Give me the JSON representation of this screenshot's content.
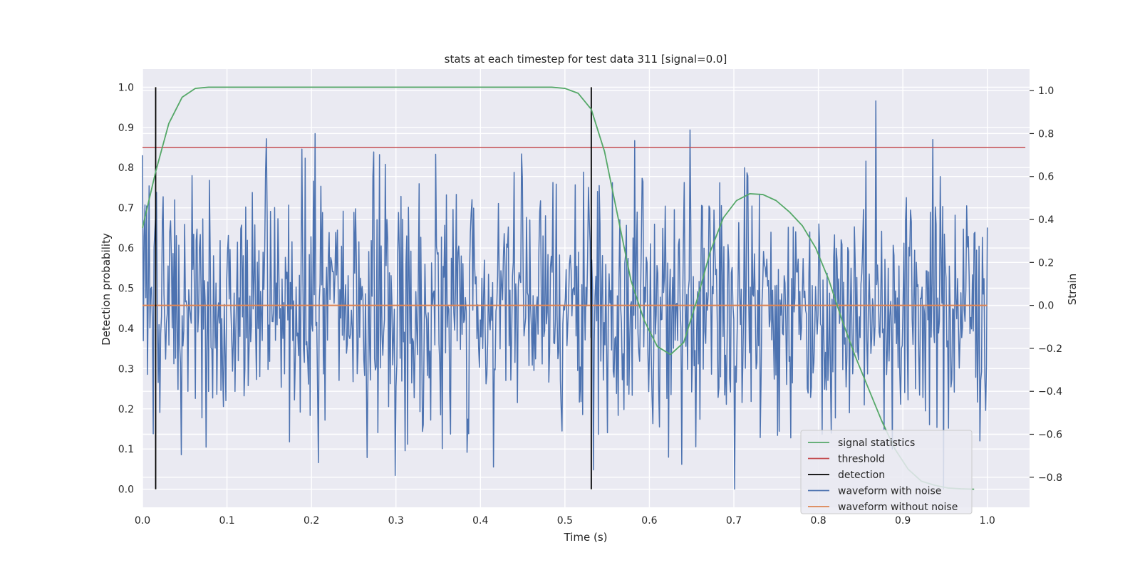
{
  "chart_data": {
    "type": "line",
    "title": "stats at each timestep for test data 311 [signal=0.0]",
    "xlabel": "Time (s)",
    "ylabel_left": "Detection probability",
    "ylabel_right": "Strain",
    "xlim": [
      0.0,
      1.05
    ],
    "ylim_left": [
      -0.045,
      1.045
    ],
    "ylim_right": [
      -0.94,
      1.1
    ],
    "x_ticks": [
      "0.0",
      "0.1",
      "0.2",
      "0.3",
      "0.4",
      "0.5",
      "0.6",
      "0.7",
      "0.8",
      "0.9",
      "1.0"
    ],
    "y_ticks_left": [
      "0.0",
      "0.1",
      "0.2",
      "0.3",
      "0.4",
      "0.5",
      "0.6",
      "0.7",
      "0.8",
      "0.9",
      "1.0"
    ],
    "y_ticks_right": [
      "−0.8",
      "−0.6",
      "−0.4",
      "−0.2",
      "0.0",
      "0.2",
      "0.4",
      "0.6",
      "0.8",
      "1.0"
    ],
    "grid": true,
    "legend_position": "lower-right",
    "series": [
      {
        "name": "signal statistics",
        "axis": "left",
        "color": "#55a868",
        "x": [
          0.0,
          0.0156,
          0.0312,
          0.0469,
          0.0625,
          0.0781,
          0.1,
          0.2,
          0.3,
          0.4,
          0.4844,
          0.5,
          0.5156,
          0.5312,
          0.5469,
          0.5625,
          0.5781,
          0.5938,
          0.6094,
          0.625,
          0.6406,
          0.6562,
          0.6719,
          0.6875,
          0.7031,
          0.7188,
          0.7344,
          0.75,
          0.7656,
          0.7812,
          0.7969,
          0.8125,
          0.8281,
          0.8438,
          0.8594,
          0.875,
          0.8906,
          0.9062,
          0.9219,
          0.9375,
          0.9531,
          0.9688,
          0.9844
        ],
        "y": [
          0.65,
          0.79,
          0.91,
          0.975,
          0.997,
          1.0,
          1.0,
          1.0,
          1.0,
          1.0,
          1.0,
          0.997,
          0.985,
          0.945,
          0.84,
          0.68,
          0.52,
          0.42,
          0.355,
          0.335,
          0.365,
          0.47,
          0.59,
          0.675,
          0.718,
          0.735,
          0.733,
          0.718,
          0.69,
          0.655,
          0.6,
          0.52,
          0.42,
          0.33,
          0.25,
          0.17,
          0.1,
          0.05,
          0.02,
          0.01,
          0.003,
          0.001,
          0.0
        ]
      },
      {
        "name": "threshold",
        "axis": "left",
        "color": "#c44e52",
        "x": [
          0.0,
          1.045
        ],
        "y": [
          0.85,
          0.85
        ]
      },
      {
        "name": "detection",
        "axis": "left",
        "color": "#000000",
        "x_lines": [
          0.0156,
          0.5312
        ],
        "y_range": [
          0.0,
          1.0
        ]
      },
      {
        "name": "waveform with noise",
        "axis": "right",
        "color": "#4c72b0",
        "x_range": [
          0.0,
          1.0
        ],
        "n_points": 1024,
        "std": 0.3,
        "y_min": -0.855,
        "y_max": 1.0
      },
      {
        "name": "waveform without noise",
        "axis": "right",
        "color": "#dd8452",
        "x": [
          0.0,
          1.0
        ],
        "y": [
          0.0,
          0.0
        ]
      }
    ]
  }
}
